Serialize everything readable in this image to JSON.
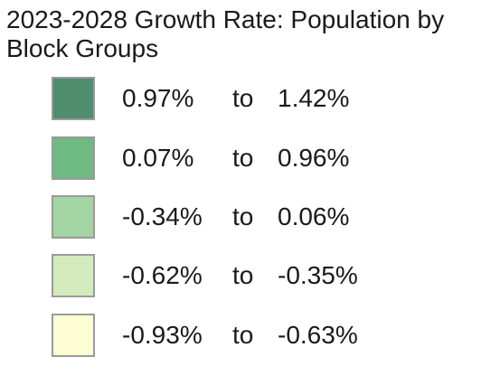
{
  "legend": {
    "title_line1": "2023-2028 Growth Rate: Population by",
    "title_line2": "Block Groups",
    "classes": [
      {
        "min": "0.97%",
        "separator": "to",
        "max": "1.42%",
        "color": "#4e8e6f"
      },
      {
        "min": "0.07%",
        "separator": "to",
        "max": "0.96%",
        "color": "#6fba83"
      },
      {
        "min": "-0.34%",
        "separator": "to",
        "max": "0.06%",
        "color": "#a3d4a3"
      },
      {
        "min": "-0.62%",
        "separator": "to",
        "max": "-0.35%",
        "color": "#d3ebbc"
      },
      {
        "min": "-0.93%",
        "separator": "to",
        "max": "-0.63%",
        "color": "#fdfdd3"
      }
    ]
  }
}
